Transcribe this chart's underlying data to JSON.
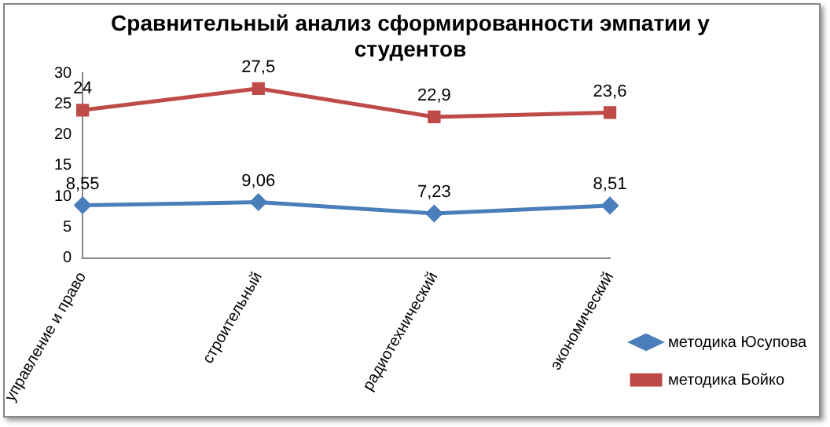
{
  "chart_data": {
    "type": "line",
    "title": "Сравнительный анализ сформированности эмпатии у студентов",
    "categories": [
      "управление и право",
      "строительный",
      "радиотехнический",
      "экономический"
    ],
    "series": [
      {
        "name": "методика Юсупова",
        "color": "#4a7ebb",
        "values": [
          8.55,
          9.06,
          7.23,
          8.51
        ],
        "marker": "diamond",
        "value_labels": [
          "8,55",
          "9,06",
          "7,23",
          "8,51"
        ]
      },
      {
        "name": "методика Бойко",
        "color": "#be4b48",
        "values": [
          24,
          27.5,
          22.9,
          23.6
        ],
        "marker": "square",
        "value_labels": [
          "24",
          "27,5",
          "22,9",
          "23,6"
        ]
      }
    ],
    "ylim": [
      0,
      30
    ],
    "yticks": [
      0,
      5,
      10,
      15,
      20,
      25,
      30
    ],
    "grid": false,
    "legend": "right",
    "line_style": "solid"
  }
}
